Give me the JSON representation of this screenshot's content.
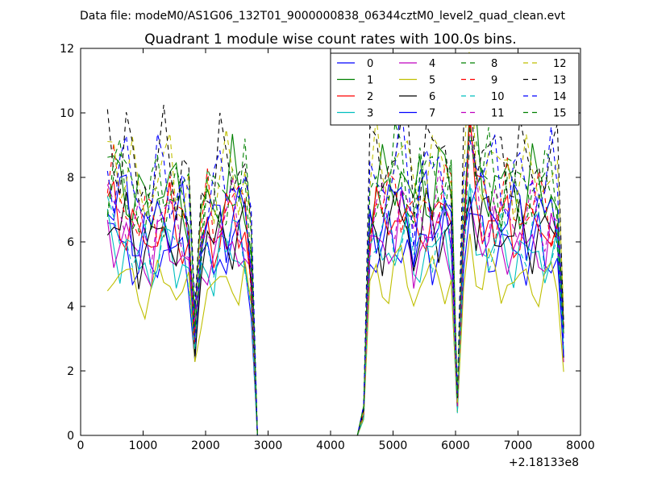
{
  "suptitle": "Data file: modeM0/AS1G06_132T01_9000000838_06344cztM0_level2_quad_clean.evt",
  "chart_data": {
    "type": "line",
    "title": "Quadrant 1 module wise count rates with 100.0s bins.",
    "xlabel": "",
    "ylabel": "",
    "x_offset_label": "+2.18133e8",
    "xlim": [
      0,
      8000
    ],
    "ylim": [
      0,
      12
    ],
    "x_ticks": [
      0,
      1000,
      2000,
      3000,
      4000,
      5000,
      6000,
      7000,
      8000
    ],
    "y_ticks": [
      0,
      2,
      4,
      6,
      8,
      10,
      12
    ],
    "grid": false,
    "legend_position": "top-right",
    "legend_columns": 4,
    "x": [
      430,
      530,
      630,
      730,
      830,
      930,
      1030,
      1130,
      1230,
      1330,
      1430,
      1530,
      1630,
      1730,
      1830,
      1930,
      2030,
      2130,
      2230,
      2330,
      2430,
      2530,
      2630,
      2730,
      2830,
      2930,
      3030,
      3130,
      3230,
      3330,
      3430,
      3530,
      3630,
      3730,
      3830,
      3930,
      4030,
      4130,
      4230,
      4330,
      4430,
      4530,
      4630,
      4730,
      4830,
      4930,
      5030,
      5130,
      5230,
      5330,
      5430,
      5530,
      5630,
      5730,
      5830,
      5930,
      6030,
      6130,
      6230,
      6330,
      6430,
      6530,
      6630,
      6730,
      6830,
      6930,
      7030,
      7130,
      7230,
      7330,
      7430,
      7530,
      7630,
      7730
    ],
    "profile": [
      1.0,
      1.0,
      0.97,
      0.98,
      0.9,
      0.84,
      0.88,
      0.86,
      0.93,
      0.95,
      0.94,
      0.89,
      0.92,
      0.85,
      0.42,
      0.8,
      0.92,
      0.86,
      0.93,
      0.91,
      0.95,
      0.93,
      0.94,
      0.7,
      0.0,
      0.0,
      0.0,
      0.0,
      0.0,
      0.0,
      0.0,
      0.0,
      0.0,
      0.0,
      0.0,
      0.0,
      0.0,
      0.0,
      0.0,
      0.0,
      0.0,
      0.1,
      0.9,
      0.95,
      0.92,
      0.96,
      0.99,
      1.02,
      0.97,
      0.83,
      0.95,
      0.98,
      0.93,
      0.96,
      0.99,
      0.93,
      0.13,
      0.88,
      1.2,
      1.02,
      0.98,
      0.97,
      0.95,
      0.93,
      0.96,
      0.92,
      0.94,
      0.9,
      0.93,
      0.95,
      0.91,
      0.94,
      0.9,
      0.4
    ],
    "series": [
      {
        "name": "0",
        "level": 6.1,
        "color": "#0000ff",
        "dash": "solid"
      },
      {
        "name": "1",
        "level": 8.2,
        "color": "#008000",
        "dash": "solid"
      },
      {
        "name": "2",
        "level": 7.0,
        "color": "#ff0000",
        "dash": "solid"
      },
      {
        "name": "3",
        "level": 6.0,
        "color": "#00bfbf",
        "dash": "solid"
      },
      {
        "name": "4",
        "level": 6.3,
        "color": "#bf00bf",
        "dash": "solid"
      },
      {
        "name": "5",
        "level": 5.1,
        "color": "#bfbf00",
        "dash": "solid"
      },
      {
        "name": "6",
        "level": 6.7,
        "color": "#000000",
        "dash": "solid"
      },
      {
        "name": "7",
        "level": 7.3,
        "color": "#0000ff",
        "dash": "solid"
      },
      {
        "name": "8",
        "level": 8.0,
        "color": "#008000",
        "dash": "dashed"
      },
      {
        "name": "9",
        "level": 7.6,
        "color": "#ff0000",
        "dash": "dashed"
      },
      {
        "name": "10",
        "level": 6.4,
        "color": "#00bfbf",
        "dash": "dashed"
      },
      {
        "name": "11",
        "level": 7.2,
        "color": "#bf00bf",
        "dash": "dashed"
      },
      {
        "name": "12",
        "level": 8.7,
        "color": "#bfbf00",
        "dash": "dashed"
      },
      {
        "name": "13",
        "level": 9.1,
        "color": "#000000",
        "dash": "dashed"
      },
      {
        "name": "14",
        "level": 8.5,
        "color": "#0000ff",
        "dash": "dashed"
      },
      {
        "name": "15",
        "level": 8.3,
        "color": "#008000",
        "dash": "dashed"
      }
    ]
  }
}
